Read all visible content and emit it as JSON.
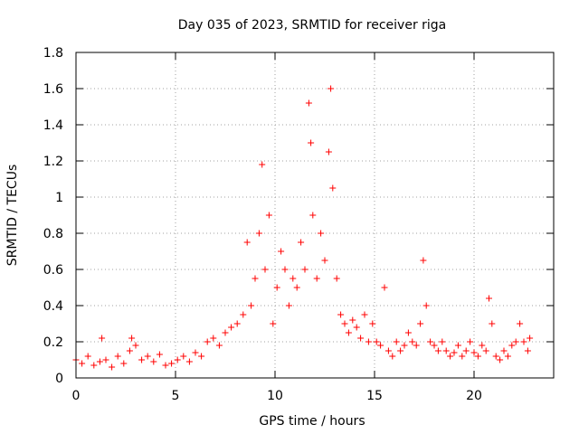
{
  "chart_data": {
    "type": "scatter",
    "title": "Day 035 of 2023, SRMTID for receiver riga",
    "xlabel": "GPS time / hours",
    "ylabel": "SRMTID / TECUs",
    "xlim": [
      0,
      24
    ],
    "ylim": [
      0,
      1.8
    ],
    "xticks": [
      0,
      5,
      10,
      15,
      20
    ],
    "xtick_labels": [
      "0",
      "5",
      "10",
      "15",
      "20"
    ],
    "yticks": [
      0,
      0.2,
      0.4,
      0.6,
      0.8,
      1,
      1.2,
      1.4,
      1.6,
      1.8
    ],
    "ytick_labels": [
      "0",
      "0.2",
      "0.4",
      "0.6",
      "0.8",
      "1",
      "1.2",
      "1.4",
      "1.6",
      "1.8"
    ],
    "grid": true,
    "marker": "+",
    "series": [
      {
        "name": "SRMTID",
        "color": "#ff0000",
        "x": [
          0.0,
          0.3,
          0.6,
          0.9,
          1.2,
          1.3,
          1.5,
          1.8,
          2.1,
          2.4,
          2.7,
          2.8,
          3.0,
          3.3,
          3.6,
          3.9,
          4.2,
          4.5,
          4.8,
          5.1,
          5.4,
          5.7,
          6.0,
          6.3,
          6.6,
          6.9,
          7.2,
          7.5,
          7.8,
          8.1,
          8.4,
          8.6,
          8.8,
          9.0,
          9.2,
          9.35,
          9.5,
          9.7,
          9.9,
          10.1,
          10.3,
          10.5,
          10.7,
          10.9,
          11.1,
          11.3,
          11.5,
          11.7,
          11.8,
          11.9,
          12.1,
          12.3,
          12.5,
          12.7,
          12.8,
          12.9,
          13.1,
          13.3,
          13.5,
          13.7,
          13.9,
          14.1,
          14.3,
          14.5,
          14.7,
          14.9,
          15.1,
          15.3,
          15.5,
          15.7,
          15.9,
          16.1,
          16.3,
          16.5,
          16.7,
          16.9,
          17.1,
          17.3,
          17.45,
          17.6,
          17.8,
          18.0,
          18.2,
          18.4,
          18.6,
          18.8,
          19.0,
          19.2,
          19.4,
          19.6,
          19.8,
          20.0,
          20.2,
          20.4,
          20.6,
          20.75,
          20.9,
          21.1,
          21.3,
          21.5,
          21.7,
          21.9,
          22.1,
          22.3,
          22.5,
          22.7,
          22.8
        ],
        "y": [
          0.1,
          0.08,
          0.12,
          0.07,
          0.09,
          0.22,
          0.1,
          0.06,
          0.12,
          0.08,
          0.15,
          0.22,
          0.18,
          0.1,
          0.12,
          0.09,
          0.13,
          0.07,
          0.08,
          0.1,
          0.12,
          0.09,
          0.14,
          0.12,
          0.2,
          0.22,
          0.18,
          0.25,
          0.28,
          0.3,
          0.35,
          0.75,
          0.4,
          0.55,
          0.8,
          1.18,
          0.6,
          0.9,
          0.3,
          0.5,
          0.7,
          0.6,
          0.4,
          0.55,
          0.5,
          0.75,
          0.6,
          1.52,
          1.3,
          0.9,
          0.55,
          0.8,
          0.65,
          1.25,
          1.6,
          1.05,
          0.55,
          0.35,
          0.3,
          0.25,
          0.32,
          0.28,
          0.22,
          0.35,
          0.2,
          0.3,
          0.2,
          0.18,
          0.5,
          0.15,
          0.12,
          0.2,
          0.15,
          0.18,
          0.25,
          0.2,
          0.18,
          0.3,
          0.65,
          0.4,
          0.2,
          0.18,
          0.15,
          0.2,
          0.15,
          0.12,
          0.14,
          0.18,
          0.12,
          0.15,
          0.2,
          0.14,
          0.12,
          0.18,
          0.15,
          0.44,
          0.3,
          0.12,
          0.1,
          0.15,
          0.12,
          0.18,
          0.2,
          0.3,
          0.2,
          0.15,
          0.22
        ]
      }
    ]
  }
}
